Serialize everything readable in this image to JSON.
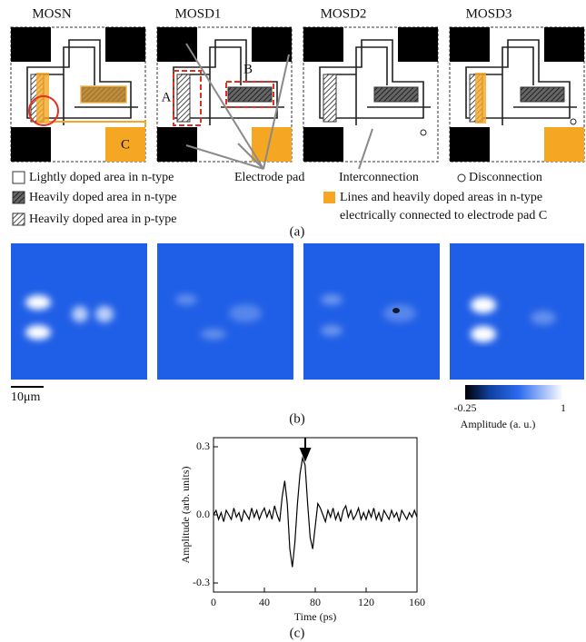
{
  "panel_a": {
    "label": "(a)",
    "titles": [
      "MOSN",
      "MOSD1",
      "MOSD2",
      "MOSD3"
    ],
    "callouts": {
      "a": "A",
      "b": "B",
      "c": "C"
    },
    "legend": {
      "lightly_n": "Lightly doped area in n-type",
      "heavily_n": "Heavily doped area in n-type",
      "heavily_p": "Heavily doped area in p-type",
      "electrode_pad": "Electrode pad",
      "interconnection": "Interconnection",
      "disconnection": "Disconnection",
      "connected": [
        "Lines and heavily doped areas in n-type",
        "electrically connected to electrode pad C"
      ]
    }
  },
  "panel_b": {
    "label": "(b)",
    "scale_bar": "10μm",
    "colorbar": {
      "ticks": [
        -0.25,
        1
      ],
      "title": "Amplitude (a. u.)"
    }
  },
  "panel_c_label": "(c)",
  "chart_data": {
    "type": "line",
    "xlabel": "Time (ps)",
    "ylabel": "Amplitude (arb. units)",
    "color": "#000000",
    "x": [
      0,
      2,
      4,
      6,
      8,
      10,
      12,
      14,
      16,
      18,
      20,
      22,
      24,
      26,
      28,
      30,
      32,
      34,
      36,
      38,
      40,
      42,
      44,
      46,
      48,
      50,
      52,
      54,
      56,
      58,
      60,
      62,
      64,
      66,
      68,
      70,
      72,
      74,
      76,
      78,
      80,
      82,
      84,
      86,
      88,
      90,
      92,
      94,
      96,
      98,
      100,
      102,
      104,
      106,
      108,
      110,
      112,
      114,
      116,
      118,
      120,
      122,
      124,
      126,
      128,
      130,
      132,
      134,
      136,
      138,
      140,
      142,
      144,
      146,
      148,
      150,
      152,
      154,
      156,
      158,
      160
    ],
    "values": [
      0.0,
      0.02,
      -0.02,
      0.01,
      -0.03,
      0.02,
      0.0,
      -0.02,
      0.03,
      -0.01,
      0.01,
      -0.03,
      0.02,
      0.0,
      -0.02,
      0.03,
      -0.01,
      0.02,
      -0.02,
      0.01,
      0.03,
      -0.01,
      0.02,
      -0.02,
      0.04,
      0.0,
      -0.03,
      0.08,
      0.15,
      0.05,
      -0.15,
      -0.23,
      -0.12,
      0.05,
      0.18,
      0.25,
      0.22,
      0.05,
      -0.1,
      -0.15,
      -0.05,
      0.05,
      0.03,
      0.0,
      -0.03,
      0.02,
      -0.01,
      0.03,
      -0.02,
      0.01,
      -0.03,
      0.02,
      0.04,
      -0.01,
      0.02,
      -0.02,
      0.0,
      0.03,
      -0.02,
      0.01,
      -0.02,
      0.02,
      -0.01,
      0.03,
      -0.02,
      0.01,
      -0.03,
      0.02,
      0.0,
      -0.02,
      0.02,
      -0.01,
      0.01,
      -0.03,
      0.02,
      0.0,
      -0.02,
      0.01,
      -0.01,
      0.02,
      -0.01
    ],
    "xlim": [
      0,
      160
    ],
    "ylim": [
      -0.34,
      0.34
    ],
    "xticks": [
      0,
      40,
      80,
      120,
      160
    ],
    "yticks": [
      -0.3,
      {
        "value": 0,
        "label": "0.0"
      },
      0.3
    ]
  }
}
